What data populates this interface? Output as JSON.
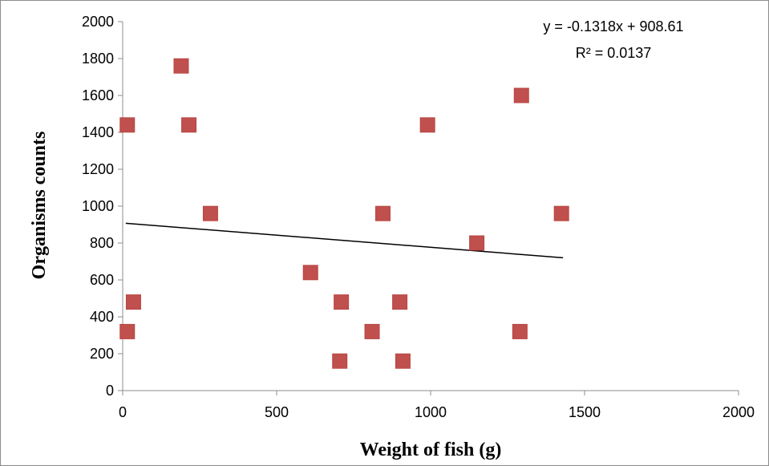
{
  "chart_data": {
    "type": "scatter",
    "xlabel": "Weight of fish (g)",
    "ylabel": "Organisms counts",
    "xlim": [
      0,
      2000
    ],
    "ylim": [
      0,
      2000
    ],
    "x_ticks": [
      "0",
      "500",
      "1000",
      "1500",
      "2000"
    ],
    "y_ticks": [
      "0",
      "200",
      "400",
      "600",
      "800",
      "1000",
      "1200",
      "1400",
      "1600",
      "1800",
      "2000"
    ],
    "grid": false,
    "marker_color": "#c0504d",
    "trendline_color": "#000000",
    "points": [
      {
        "x": 190,
        "y": 1760
      },
      {
        "x": 15,
        "y": 1440
      },
      {
        "x": 215,
        "y": 1440
      },
      {
        "x": 990,
        "y": 1440
      },
      {
        "x": 1295,
        "y": 1600
      },
      {
        "x": 285,
        "y": 960
      },
      {
        "x": 845,
        "y": 960
      },
      {
        "x": 1425,
        "y": 960
      },
      {
        "x": 1150,
        "y": 800
      },
      {
        "x": 610,
        "y": 640
      },
      {
        "x": 35,
        "y": 480
      },
      {
        "x": 710,
        "y": 480
      },
      {
        "x": 900,
        "y": 480
      },
      {
        "x": 15,
        "y": 320
      },
      {
        "x": 810,
        "y": 320
      },
      {
        "x": 1290,
        "y": 320
      },
      {
        "x": 705,
        "y": 160
      },
      {
        "x": 910,
        "y": 160
      }
    ],
    "trendline": {
      "slope": -0.1318,
      "intercept": 908.61,
      "x_range": [
        10,
        1430
      ],
      "equation_label": "y = -0.1318x + 908.61",
      "r2_label": "R² = 0.0137"
    }
  }
}
